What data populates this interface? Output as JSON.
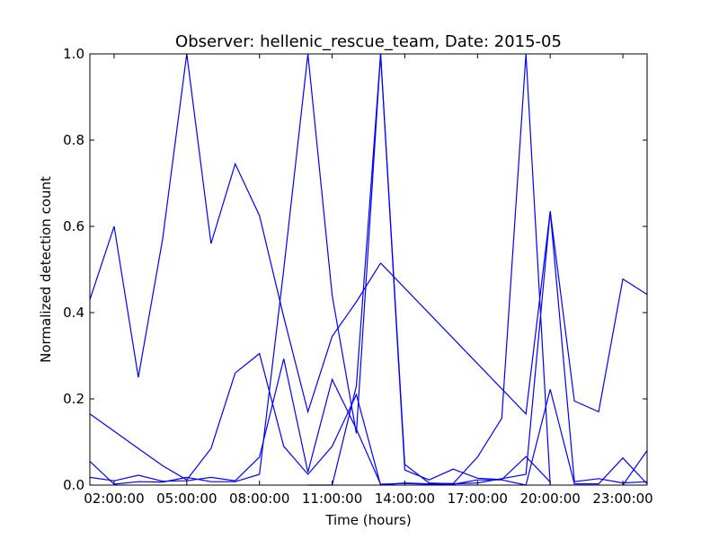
{
  "chart_data": {
    "type": "line",
    "title": "Observer: hellenic_rescue_team, Date: 2015-05",
    "xlabel": "Time (hours)",
    "ylabel": "Normalized detection count",
    "xlim": [
      1,
      24
    ],
    "ylim": [
      0,
      1
    ],
    "x_ticks": [
      2,
      5,
      8,
      11,
      14,
      17,
      20,
      23
    ],
    "x_tick_labels": [
      "02:00:00",
      "05:00:00",
      "08:00:00",
      "11:00:00",
      "14:00:00",
      "17:00:00",
      "20:00:00",
      "23:00:00"
    ],
    "y_ticks": [
      0,
      0.2,
      0.4,
      0.6,
      0.8,
      1.0
    ],
    "y_tick_labels": [
      "0.0",
      "0.2",
      "0.4",
      "0.6",
      "0.8",
      "1.0"
    ],
    "grid": false,
    "line_color": "#0000ff",
    "series": [
      {
        "x": [
          1,
          2,
          3,
          4,
          5,
          6,
          7,
          8,
          9,
          10,
          11,
          12,
          13
        ],
        "y": [
          0.43,
          0.6,
          0.25,
          0.57,
          1.0,
          0.56,
          0.745,
          0.625,
          0.39,
          0.17,
          0.345,
          0.425,
          0.515
        ]
      },
      {
        "x": [
          13,
          19,
          20,
          21,
          22,
          23,
          24
        ],
        "y": [
          0.515,
          0.165,
          0.635,
          0.195,
          0.17,
          0.478,
          0.442
        ]
      },
      {
        "x": [
          10,
          11,
          12,
          13,
          14,
          15,
          16,
          17,
          18,
          19,
          20
        ],
        "y": [
          0.0,
          0.0,
          0.23,
          1.0,
          0.035,
          0.012,
          0.037,
          0.016,
          0.013,
          0.066,
          0.007
        ]
      },
      {
        "x": [
          1,
          2,
          3,
          4,
          5,
          6,
          7,
          8,
          9,
          10,
          11,
          12,
          13,
          14,
          15,
          16,
          17,
          18,
          19,
          20
        ],
        "y": [
          0.165,
          0.125,
          0.085,
          0.045,
          0.012,
          0.085,
          0.26,
          0.305,
          0.09,
          0.025,
          0.09,
          0.21,
          0.0,
          0.005,
          0.003,
          0.004,
          0.065,
          0.155,
          1.0,
          0.0
        ]
      },
      {
        "x": [
          1,
          2,
          3,
          4,
          5,
          6,
          7,
          8,
          9,
          10,
          11,
          12,
          13,
          14,
          15,
          16,
          17,
          18,
          19,
          20,
          21,
          22,
          23,
          24
        ],
        "y": [
          0.055,
          0.002,
          0.008,
          0.007,
          0.018,
          0.008,
          0.008,
          0.025,
          0.5,
          1.0,
          0.44,
          0.12,
          1.0,
          0.048,
          0.005,
          0.003,
          0.005,
          0.015,
          0.025,
          0.635,
          0.008,
          0.015,
          0.005,
          0.008
        ]
      },
      {
        "x": [
          1,
          2,
          3,
          4,
          5,
          6,
          7,
          8,
          9,
          10,
          11,
          12,
          13,
          14,
          15,
          16,
          17,
          18,
          19,
          20,
          21,
          22,
          23,
          24
        ],
        "y": [
          0.018,
          0.01,
          0.023,
          0.009,
          0.01,
          0.018,
          0.01,
          0.065,
          0.293,
          0.03,
          0.245,
          0.13,
          0.002,
          0.004,
          0.002,
          0.002,
          0.012,
          0.012,
          0.0,
          0.222,
          0.003,
          0.003,
          0.063,
          0.003
        ]
      },
      {
        "x": [
          23,
          24
        ],
        "y": [
          0.0,
          0.08
        ]
      }
    ]
  }
}
